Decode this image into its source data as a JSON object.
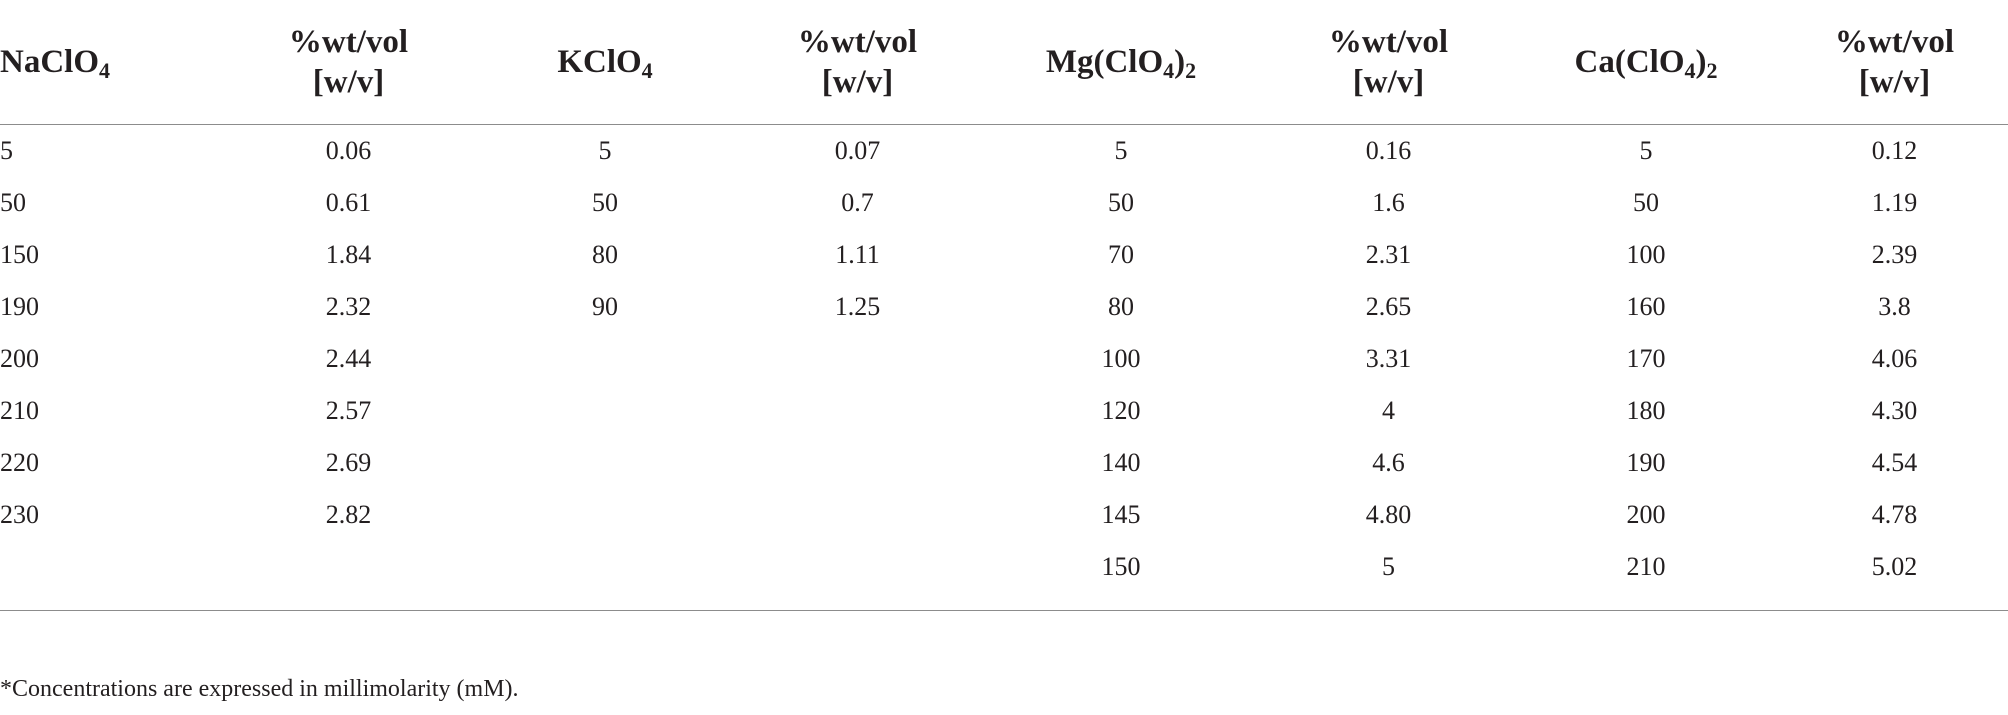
{
  "table": {
    "headers": [
      {
        "base": "NaClO",
        "sub": "4",
        "suffix": ""
      },
      {
        "line1": "%wt/vol",
        "line2": "[w/v]"
      },
      {
        "base": "KClO",
        "sub": "4",
        "suffix": ""
      },
      {
        "line1": "%wt/vol",
        "line2": "[w/v]"
      },
      {
        "base": "Mg(ClO",
        "sub": "4",
        "suffix": ")",
        "sub2": "2"
      },
      {
        "line1": "%wt/vol",
        "line2": "[w/v]"
      },
      {
        "base": "Ca(ClO",
        "sub": "4",
        "suffix": ")",
        "sub2": "2"
      },
      {
        "line1": "%wt/vol",
        "line2": "[w/v]"
      }
    ],
    "rows": [
      [
        "5",
        "0.06",
        "5",
        "0.07",
        "5",
        "0.16",
        "5",
        "0.12"
      ],
      [
        "50",
        "0.61",
        "50",
        "0.7",
        "50",
        "1.6",
        "50",
        "1.19"
      ],
      [
        "150",
        "1.84",
        "80",
        "1.11",
        "70",
        "2.31",
        "100",
        "2.39"
      ],
      [
        "190",
        "2.32",
        "90",
        "1.25",
        "80",
        "2.65",
        "160",
        "3.8"
      ],
      [
        "200",
        "2.44",
        "",
        "",
        "100",
        "3.31",
        "170",
        "4.06"
      ],
      [
        "210",
        "2.57",
        "",
        "",
        "120",
        "4",
        "180",
        "4.30"
      ],
      [
        "220",
        "2.69",
        "",
        "",
        "140",
        "4.6",
        "190",
        "4.54"
      ],
      [
        "230",
        "2.82",
        "",
        "",
        "145",
        "4.80",
        "200",
        "4.78"
      ],
      [
        "",
        "",
        "",
        "",
        "150",
        "5",
        "210",
        "5.02"
      ]
    ]
  },
  "footnote": "*Concentrations are expressed in millimolarity (mM)."
}
